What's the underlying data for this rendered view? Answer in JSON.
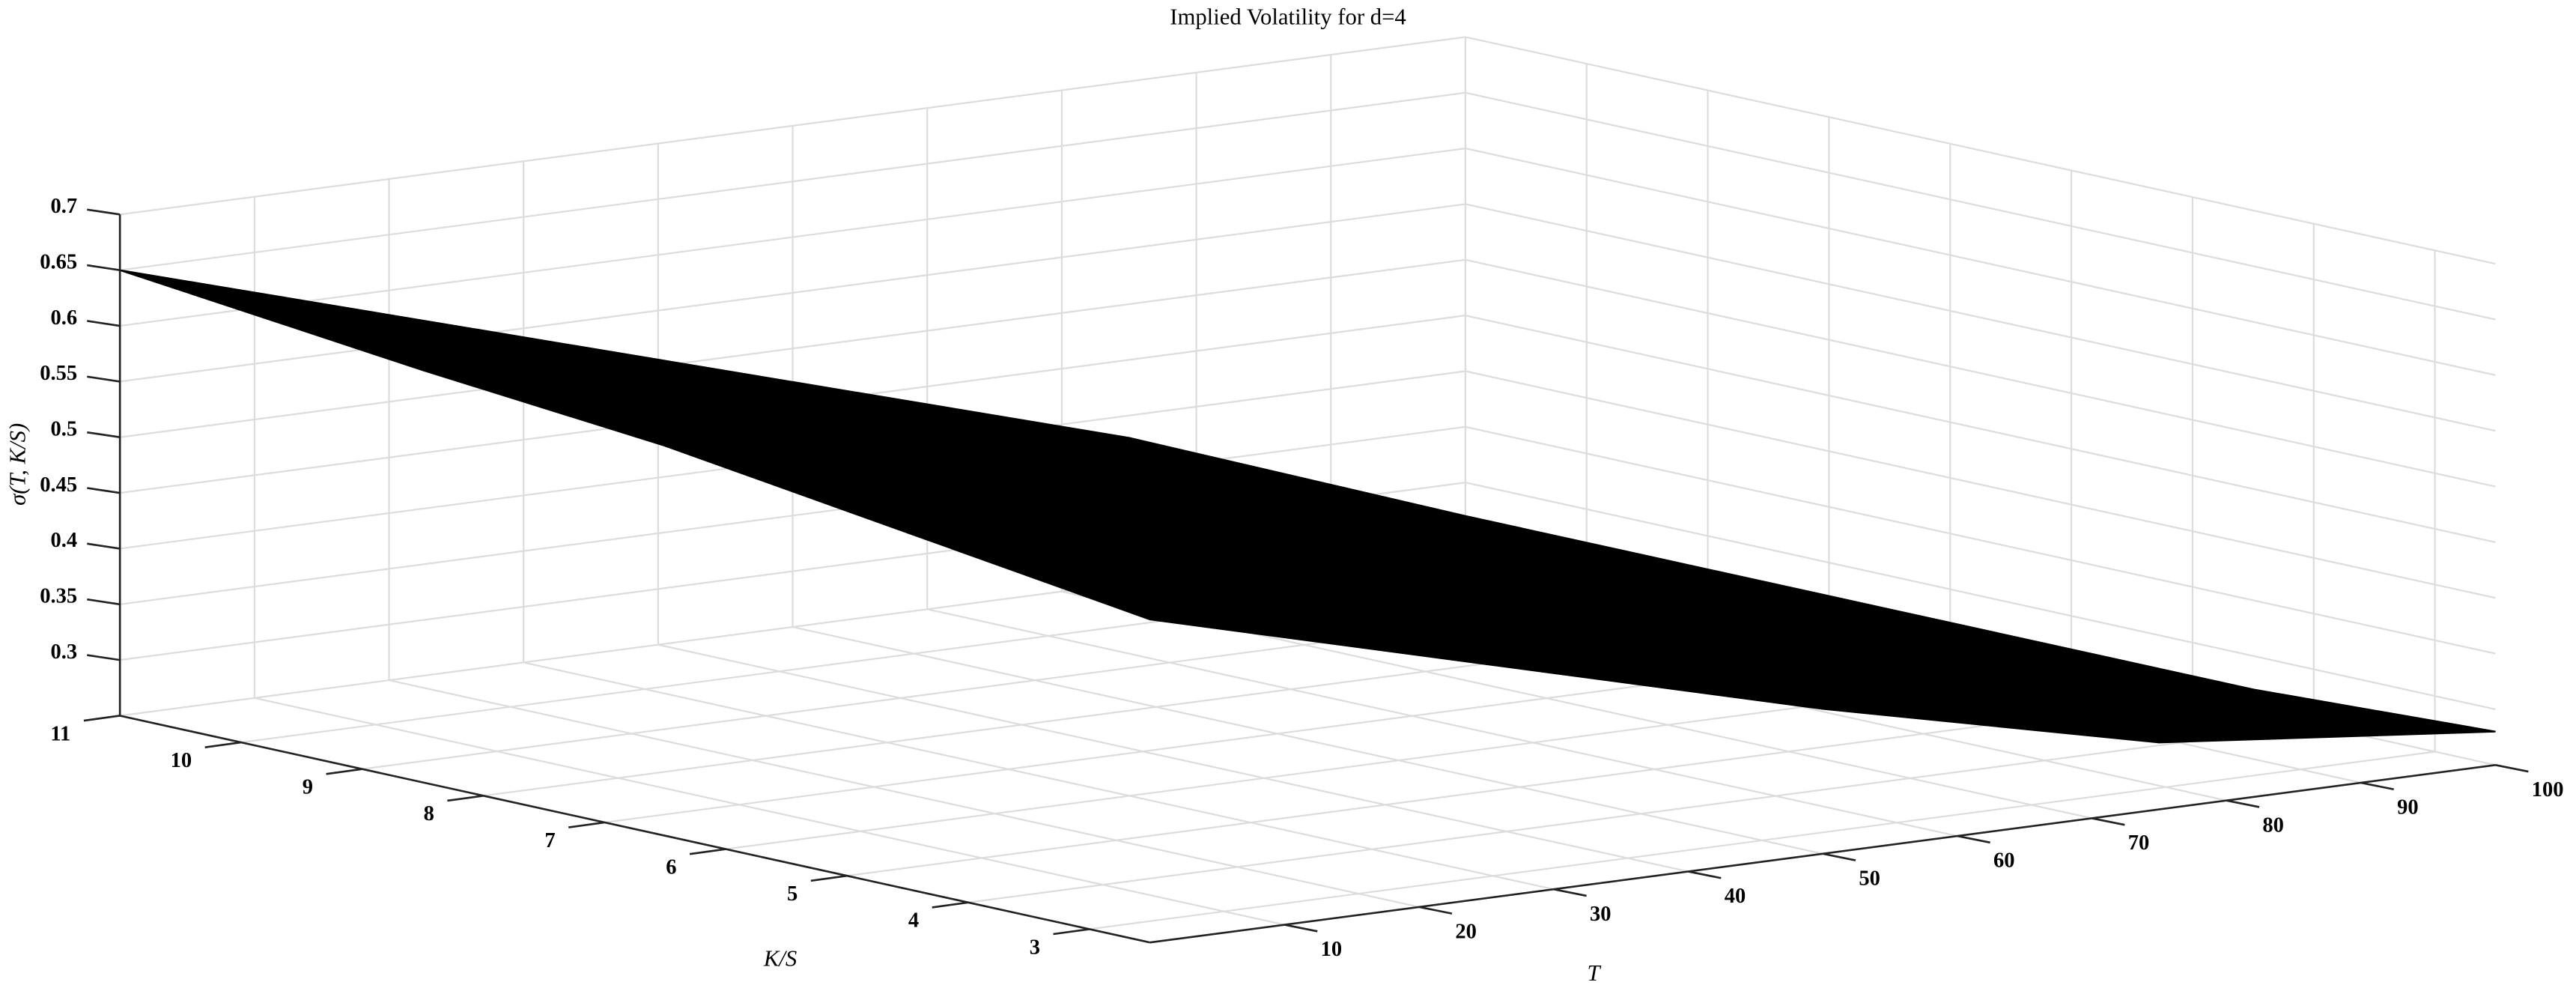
{
  "chart_data": {
    "type": "surface",
    "title": "Implied Volatility for d=4",
    "xlabel": "T",
    "ylabel": "K/S",
    "zlabel": "σ(T, K/S)",
    "x": [
      0,
      25,
      50,
      75,
      100
    ],
    "y": [
      2.5,
      4.5,
      6.5,
      8.5,
      11
    ],
    "z": [
      [
        0.54,
        0.46,
        0.38,
        0.31,
        0.28
      ],
      [
        0.57,
        0.48,
        0.39,
        0.31,
        0.27
      ],
      [
        0.6,
        0.5,
        0.41,
        0.32,
        0.27
      ],
      [
        0.62,
        0.53,
        0.43,
        0.34,
        0.27
      ],
      [
        0.65,
        0.56,
        0.47,
        0.38,
        0.27
      ]
    ],
    "color": "#000000",
    "xlim": [
      0,
      100
    ],
    "ylim": [
      2.5,
      11
    ],
    "zlim": [
      0.25,
      0.7
    ],
    "xticks": [
      10,
      20,
      30,
      40,
      50,
      60,
      70,
      80,
      90,
      100
    ],
    "yticks": [
      3,
      4,
      5,
      6,
      7,
      8,
      9,
      10,
      11
    ],
    "zticks": [
      0.3,
      0.35,
      0.4,
      0.45,
      0.5,
      0.55,
      0.6,
      0.65,
      0.7
    ],
    "grid": true
  }
}
